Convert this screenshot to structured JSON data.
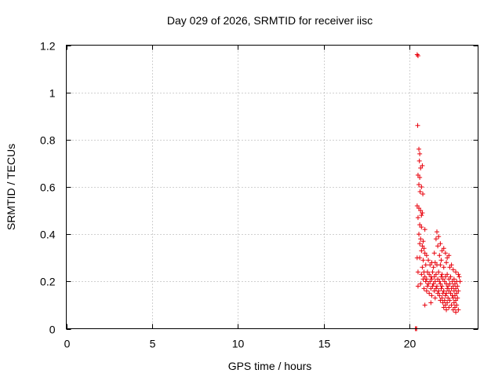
{
  "chart_data": {
    "type": "scatter",
    "title": "Day 029 of 2026, SRMTID for receiver iisc",
    "xlabel": "GPS time / hours",
    "ylabel": "SRMTID / TECUs",
    "xlim": [
      0,
      24
    ],
    "ylim": [
      0,
      1.2
    ],
    "x_ticks": [
      0,
      5,
      10,
      15,
      20
    ],
    "x_tick_labels": [
      "0",
      "5",
      "10",
      "15",
      "20"
    ],
    "y_ticks": [
      0,
      0.2,
      0.4,
      0.6,
      0.8,
      1.0,
      1.2
    ],
    "y_tick_labels": [
      "0",
      "0.2",
      "0.4",
      "0.6",
      "0.8",
      "1",
      "1.2"
    ],
    "grid": true,
    "marker": "+",
    "color": "#e8000b",
    "series": [
      {
        "name": "SRMTID",
        "points": [
          [
            20.35,
            0.0
          ],
          [
            20.4,
            0.0
          ],
          [
            20.42,
            0.0
          ],
          [
            20.45,
            1.16
          ],
          [
            20.5,
            1.155
          ],
          [
            20.48,
            0.86
          ],
          [
            20.55,
            0.76
          ],
          [
            20.6,
            0.74
          ],
          [
            20.58,
            0.71
          ],
          [
            20.75,
            0.69
          ],
          [
            20.65,
            0.68
          ],
          [
            20.5,
            0.65
          ],
          [
            20.6,
            0.64
          ],
          [
            20.55,
            0.61
          ],
          [
            20.7,
            0.6
          ],
          [
            20.62,
            0.58
          ],
          [
            20.78,
            0.57
          ],
          [
            20.45,
            0.52
          ],
          [
            20.55,
            0.51
          ],
          [
            20.65,
            0.5
          ],
          [
            20.75,
            0.49
          ],
          [
            20.7,
            0.48
          ],
          [
            20.5,
            0.47
          ],
          [
            20.6,
            0.44
          ],
          [
            20.7,
            0.43
          ],
          [
            20.9,
            0.42
          ],
          [
            20.55,
            0.4
          ],
          [
            20.65,
            0.38
          ],
          [
            20.8,
            0.37
          ],
          [
            20.6,
            0.36
          ],
          [
            20.75,
            0.35
          ],
          [
            20.85,
            0.34
          ],
          [
            20.7,
            0.33
          ],
          [
            20.9,
            0.32
          ],
          [
            21.0,
            0.31
          ],
          [
            20.45,
            0.3
          ],
          [
            20.6,
            0.3
          ],
          [
            20.8,
            0.29
          ],
          [
            21.1,
            0.29
          ],
          [
            21.3,
            0.28
          ],
          [
            21.5,
            0.28
          ],
          [
            20.95,
            0.27
          ],
          [
            21.2,
            0.27
          ],
          [
            21.6,
            0.27
          ],
          [
            21.8,
            0.27
          ],
          [
            20.75,
            0.26
          ],
          [
            21.4,
            0.26
          ],
          [
            22.0,
            0.26
          ],
          [
            20.5,
            0.24
          ],
          [
            20.85,
            0.24
          ],
          [
            21.05,
            0.24
          ],
          [
            21.35,
            0.24
          ],
          [
            21.7,
            0.24
          ],
          [
            20.7,
            0.23
          ],
          [
            21.15,
            0.23
          ],
          [
            21.55,
            0.23
          ],
          [
            21.9,
            0.23
          ],
          [
            22.2,
            0.23
          ],
          [
            20.9,
            0.22
          ],
          [
            21.25,
            0.22
          ],
          [
            21.45,
            0.22
          ],
          [
            21.85,
            0.22
          ],
          [
            22.1,
            0.22
          ],
          [
            22.4,
            0.22
          ],
          [
            20.8,
            0.21
          ],
          [
            21.0,
            0.21
          ],
          [
            21.3,
            0.21
          ],
          [
            21.65,
            0.21
          ],
          [
            21.95,
            0.21
          ],
          [
            22.3,
            0.21
          ],
          [
            22.6,
            0.21
          ],
          [
            20.95,
            0.2
          ],
          [
            21.2,
            0.2
          ],
          [
            21.5,
            0.2
          ],
          [
            21.75,
            0.2
          ],
          [
            22.05,
            0.2
          ],
          [
            22.5,
            0.2
          ],
          [
            22.75,
            0.2
          ],
          [
            20.65,
            0.19
          ],
          [
            21.1,
            0.19
          ],
          [
            21.4,
            0.19
          ],
          [
            21.8,
            0.19
          ],
          [
            22.15,
            0.19
          ],
          [
            22.35,
            0.19
          ],
          [
            22.65,
            0.19
          ],
          [
            20.5,
            0.18
          ],
          [
            21.05,
            0.18
          ],
          [
            21.35,
            0.18
          ],
          [
            21.6,
            0.18
          ],
          [
            21.9,
            0.18
          ],
          [
            22.25,
            0.18
          ],
          [
            22.55,
            0.18
          ],
          [
            22.8,
            0.18
          ],
          [
            20.85,
            0.17
          ],
          [
            21.25,
            0.17
          ],
          [
            21.55,
            0.17
          ],
          [
            21.85,
            0.17
          ],
          [
            22.2,
            0.17
          ],
          [
            22.45,
            0.17
          ],
          [
            22.7,
            0.17
          ],
          [
            21.0,
            0.16
          ],
          [
            21.45,
            0.16
          ],
          [
            21.7,
            0.16
          ],
          [
            22.0,
            0.16
          ],
          [
            22.3,
            0.16
          ],
          [
            22.6,
            0.16
          ],
          [
            22.85,
            0.16
          ],
          [
            21.15,
            0.15
          ],
          [
            21.65,
            0.15
          ],
          [
            21.95,
            0.15
          ],
          [
            22.15,
            0.15
          ],
          [
            22.4,
            0.15
          ],
          [
            22.75,
            0.15
          ],
          [
            21.3,
            0.14
          ],
          [
            21.75,
            0.14
          ],
          [
            22.1,
            0.14
          ],
          [
            22.5,
            0.14
          ],
          [
            22.65,
            0.14
          ],
          [
            21.5,
            0.13
          ],
          [
            21.9,
            0.13
          ],
          [
            22.25,
            0.13
          ],
          [
            22.55,
            0.13
          ],
          [
            22.8,
            0.13
          ],
          [
            21.8,
            0.12
          ],
          [
            22.05,
            0.12
          ],
          [
            22.35,
            0.12
          ],
          [
            22.7,
            0.12
          ],
          [
            21.25,
            0.11
          ],
          [
            21.95,
            0.11
          ],
          [
            22.2,
            0.11
          ],
          [
            22.6,
            0.11
          ],
          [
            20.9,
            0.1
          ],
          [
            22.1,
            0.1
          ],
          [
            22.45,
            0.1
          ],
          [
            22.75,
            0.1
          ],
          [
            22.0,
            0.09
          ],
          [
            22.3,
            0.09
          ],
          [
            22.65,
            0.09
          ],
          [
            22.15,
            0.08
          ],
          [
            22.55,
            0.08
          ],
          [
            22.85,
            0.08
          ],
          [
            22.7,
            0.07
          ],
          [
            21.6,
            0.41
          ],
          [
            21.7,
            0.39
          ],
          [
            21.55,
            0.38
          ],
          [
            21.8,
            0.36
          ],
          [
            21.65,
            0.35
          ],
          [
            22.0,
            0.34
          ],
          [
            21.9,
            0.33
          ],
          [
            22.1,
            0.32
          ],
          [
            21.45,
            0.32
          ],
          [
            22.3,
            0.31
          ],
          [
            21.75,
            0.31
          ],
          [
            22.2,
            0.3
          ],
          [
            21.85,
            0.29
          ],
          [
            22.15,
            0.28
          ],
          [
            22.45,
            0.27
          ],
          [
            22.35,
            0.26
          ],
          [
            22.55,
            0.25
          ],
          [
            22.7,
            0.24
          ],
          [
            22.85,
            0.23
          ],
          [
            22.9,
            0.22
          ],
          [
            22.95,
            0.2
          ]
        ]
      }
    ]
  }
}
